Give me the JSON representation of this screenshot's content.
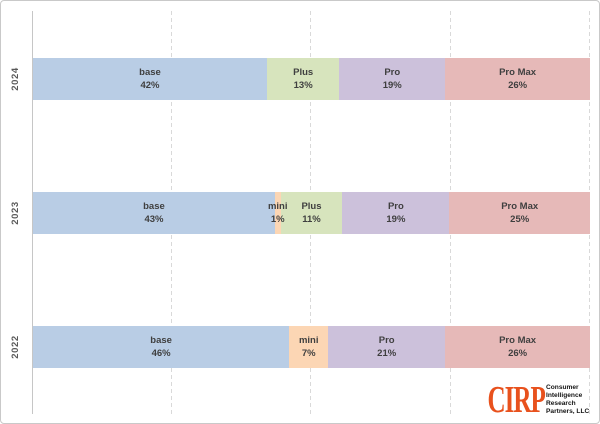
{
  "chart_data": {
    "type": "bar",
    "subtype": "100-percent-stacked-horizontal",
    "title": "",
    "xlabel": "",
    "ylabel": "",
    "xlim": [
      0,
      100
    ],
    "grid": "dashed-vertical",
    "gridlines_pct": [
      25,
      50,
      75,
      100
    ],
    "legend": "none",
    "categories": [
      "2024",
      "2023",
      "2022"
    ],
    "series": [
      {
        "name": "base",
        "values": [
          42,
          43,
          46
        ]
      },
      {
        "name": "mini",
        "values": [
          null,
          1,
          7
        ]
      },
      {
        "name": "Plus",
        "values": [
          13,
          11,
          null
        ]
      },
      {
        "name": "Pro",
        "values": [
          19,
          19,
          21
        ]
      },
      {
        "name": "Pro Max",
        "values": [
          26,
          25,
          26
        ]
      }
    ],
    "rows": [
      {
        "year": "2024",
        "segments": [
          {
            "label": "base",
            "pct": 42,
            "color": "base"
          },
          {
            "label": "Plus",
            "pct": 13,
            "color": "plus"
          },
          {
            "label": "Pro",
            "pct": 19,
            "color": "pro"
          },
          {
            "label": "Pro Max",
            "pct": 26,
            "color": "promax"
          }
        ]
      },
      {
        "year": "2023",
        "segments": [
          {
            "label": "base",
            "pct": 43,
            "color": "base"
          },
          {
            "label": "mini",
            "pct": 1,
            "color": "mini"
          },
          {
            "label": "Plus",
            "pct": 11,
            "color": "plus"
          },
          {
            "label": "Pro",
            "pct": 19,
            "color": "pro"
          },
          {
            "label": "Pro Max",
            "pct": 25,
            "color": "promax"
          }
        ]
      },
      {
        "year": "2022",
        "segments": [
          {
            "label": "base",
            "pct": 46,
            "color": "base"
          },
          {
            "label": "mini",
            "pct": 7,
            "color": "mini"
          },
          {
            "label": "Pro",
            "pct": 21,
            "color": "pro"
          },
          {
            "label": "Pro Max",
            "pct": 26,
            "color": "promax"
          }
        ]
      }
    ]
  },
  "colors": {
    "base": "#b9cde5",
    "mini": "#fcd6b4",
    "plus": "#d7e4bd",
    "pro": "#ccc1db",
    "promax": "#e6b9b8",
    "label_text": "#3f3f3f",
    "axis_text": "#595959",
    "gridline": "#d9d9d9",
    "logo_orange": "#e8511d"
  },
  "logo": {
    "text": "CIRP",
    "lines": [
      "Consumer",
      "Intelligence",
      "Research",
      "Partners, LLC"
    ]
  }
}
